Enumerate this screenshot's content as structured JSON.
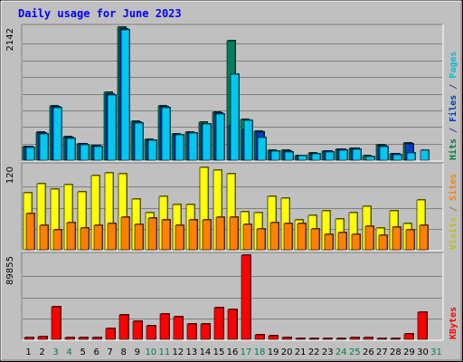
{
  "chart_data": {
    "type": "bar",
    "title": "Daily usage for June 2023",
    "categories": [
      "1",
      "2",
      "3",
      "4",
      "5",
      "6",
      "7",
      "8",
      "9",
      "10",
      "11",
      "12",
      "13",
      "14",
      "15",
      "16",
      "17",
      "18",
      "19",
      "20",
      "21",
      "22",
      "23",
      "24",
      "25",
      "26",
      "27",
      "28",
      "29",
      "30",
      "31"
    ],
    "weekend_days": [
      "3",
      "4",
      "10",
      "11",
      "17",
      "18",
      "24",
      "25",
      "31"
    ],
    "panels": [
      {
        "name": "hits-panel",
        "ymax_label": "2142",
        "ymax": 2142,
        "side_labels": [
          {
            "text": "Hits",
            "color": "#008040"
          },
          {
            "text": " / ",
            "color": "#3040a0"
          },
          {
            "text": "Files",
            "color": "#0040c0"
          },
          {
            "text": " / ",
            "color": "#3040a0"
          },
          {
            "text": "Pages",
            "color": "#00c0e0"
          }
        ],
        "series": [
          {
            "name": "Hits",
            "color": "#008060",
            "values": [
              225,
              445,
              870,
              375,
              265,
              235,
              1090,
              2142,
              625,
              335,
              870,
              425,
              450,
              610,
              775,
              1925,
              660,
              470,
              160,
              155,
              80,
              110,
              150,
              180,
              195,
              70,
              245,
              100,
              275,
              0,
              0
            ]
          },
          {
            "name": "Files",
            "color": "#0040c0",
            "values": [
              215,
              430,
              860,
              365,
              255,
              230,
              1070,
              2120,
              610,
              325,
              855,
              415,
              440,
              590,
              760,
              560,
              500,
              450,
              150,
              145,
              75,
              100,
              140,
              170,
              185,
              0,
              235,
              95,
              265,
              0,
              0
            ]
          },
          {
            "name": "Pages",
            "color": "#00c8f0",
            "values": [
              205,
              420,
              850,
              355,
              245,
              220,
              1055,
              2100,
              600,
              315,
              845,
              405,
              430,
              580,
              750,
              1380,
              645,
              360,
              140,
              135,
              70,
              95,
              130,
              160,
              175,
              60,
              225,
              85,
              115,
              160,
              0
            ]
          }
        ]
      },
      {
        "name": "visits-panel",
        "ymax_label": "120",
        "ymax": 120,
        "side_labels": [
          {
            "text": "Visits",
            "color": "#c0c000"
          },
          {
            "text": " / ",
            "color": "#a08030"
          },
          {
            "text": "Sites",
            "color": "#ff8000"
          }
        ],
        "series": [
          {
            "name": "Visits",
            "color": "#ffff00",
            "values": [
              81,
              94,
              87,
              93,
              82,
              106,
              110,
              109,
              72,
              53,
              76,
              64,
              65,
              118,
              114,
              109,
              54,
              53,
              76,
              74,
              42,
              49,
              56,
              44,
              53,
              62,
              31,
              55,
              37,
              71,
              0
            ]
          },
          {
            "name": "Sites",
            "color": "#ff8000",
            "values": [
              51,
              35,
              29,
              39,
              31,
              35,
              37,
              47,
              36,
              45,
              43,
              35,
              42,
              43,
              47,
              46,
              36,
              30,
              39,
              38,
              38,
              30,
              22,
              24,
              22,
              34,
              20,
              32,
              28,
              35,
              0
            ]
          }
        ]
      },
      {
        "name": "kbytes-panel",
        "ymax_label": "89855",
        "ymax": 89855,
        "side_labels": [
          {
            "text": "KBytes",
            "color": "#ff0000"
          }
        ],
        "series": [
          {
            "name": "KBytes",
            "color": "#ff0000",
            "values": [
              2300,
              2700,
              34500,
              1700,
              2000,
              2200,
              12000,
              26500,
              18900,
              14500,
              27000,
              24500,
              16500,
              16000,
              33500,
              31500,
              89855,
              4900,
              4300,
              1600,
              1000,
              900,
              800,
              900,
              1500,
              2100,
              1400,
              1400,
              6100,
              28800,
              0
            ]
          }
        ]
      }
    ]
  }
}
